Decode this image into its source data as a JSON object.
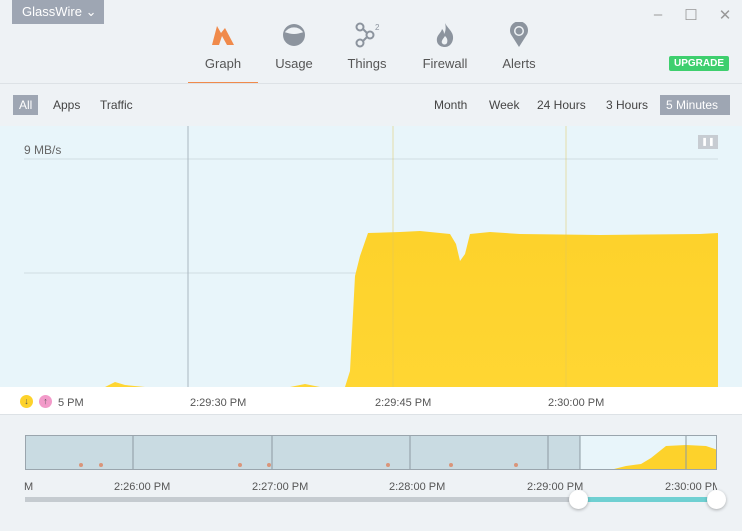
{
  "app": {
    "title": "GlassWire"
  },
  "window": {
    "minimize": "–",
    "maximize": "☐",
    "close": "✕"
  },
  "nav": [
    {
      "label": "Graph",
      "icon": "graph-icon",
      "active": true
    },
    {
      "label": "Usage",
      "icon": "usage-icon"
    },
    {
      "label": "Things",
      "icon": "things-icon",
      "badge": "2"
    },
    {
      "label": "Firewall",
      "icon": "firewall-icon"
    },
    {
      "label": "Alerts",
      "icon": "alerts-icon"
    }
  ],
  "upgrade": "UPGRADE",
  "filters": {
    "left": [
      "All",
      "Apps",
      "Traffic"
    ],
    "right": [
      "Month",
      "Week",
      "24 Hours",
      "3 Hours",
      "5 Minutes"
    ],
    "selected_left": "All",
    "selected_right": "5 Minutes"
  },
  "chart": {
    "scale_label": "9 MB/s",
    "pause": "❚❚"
  },
  "axis": {
    "start": "5 PM",
    "ticks": [
      "2:29:30 PM",
      "2:29:45 PM",
      "2:30:00 PM"
    ]
  },
  "timeline": {
    "ticks": [
      "M",
      "2:26:00 PM",
      "2:27:00 PM",
      "2:28:00 PM",
      "2:29:00 PM",
      "2:30:00 PM"
    ],
    "selection_fraction": [
      0.8,
      1.0
    ]
  },
  "colors": {
    "download": "#fdd22b",
    "upload": "#f29ac9",
    "accent": "#f08a4b",
    "upgrade": "#3ecf6e",
    "slider": "#6fd0d2"
  }
}
